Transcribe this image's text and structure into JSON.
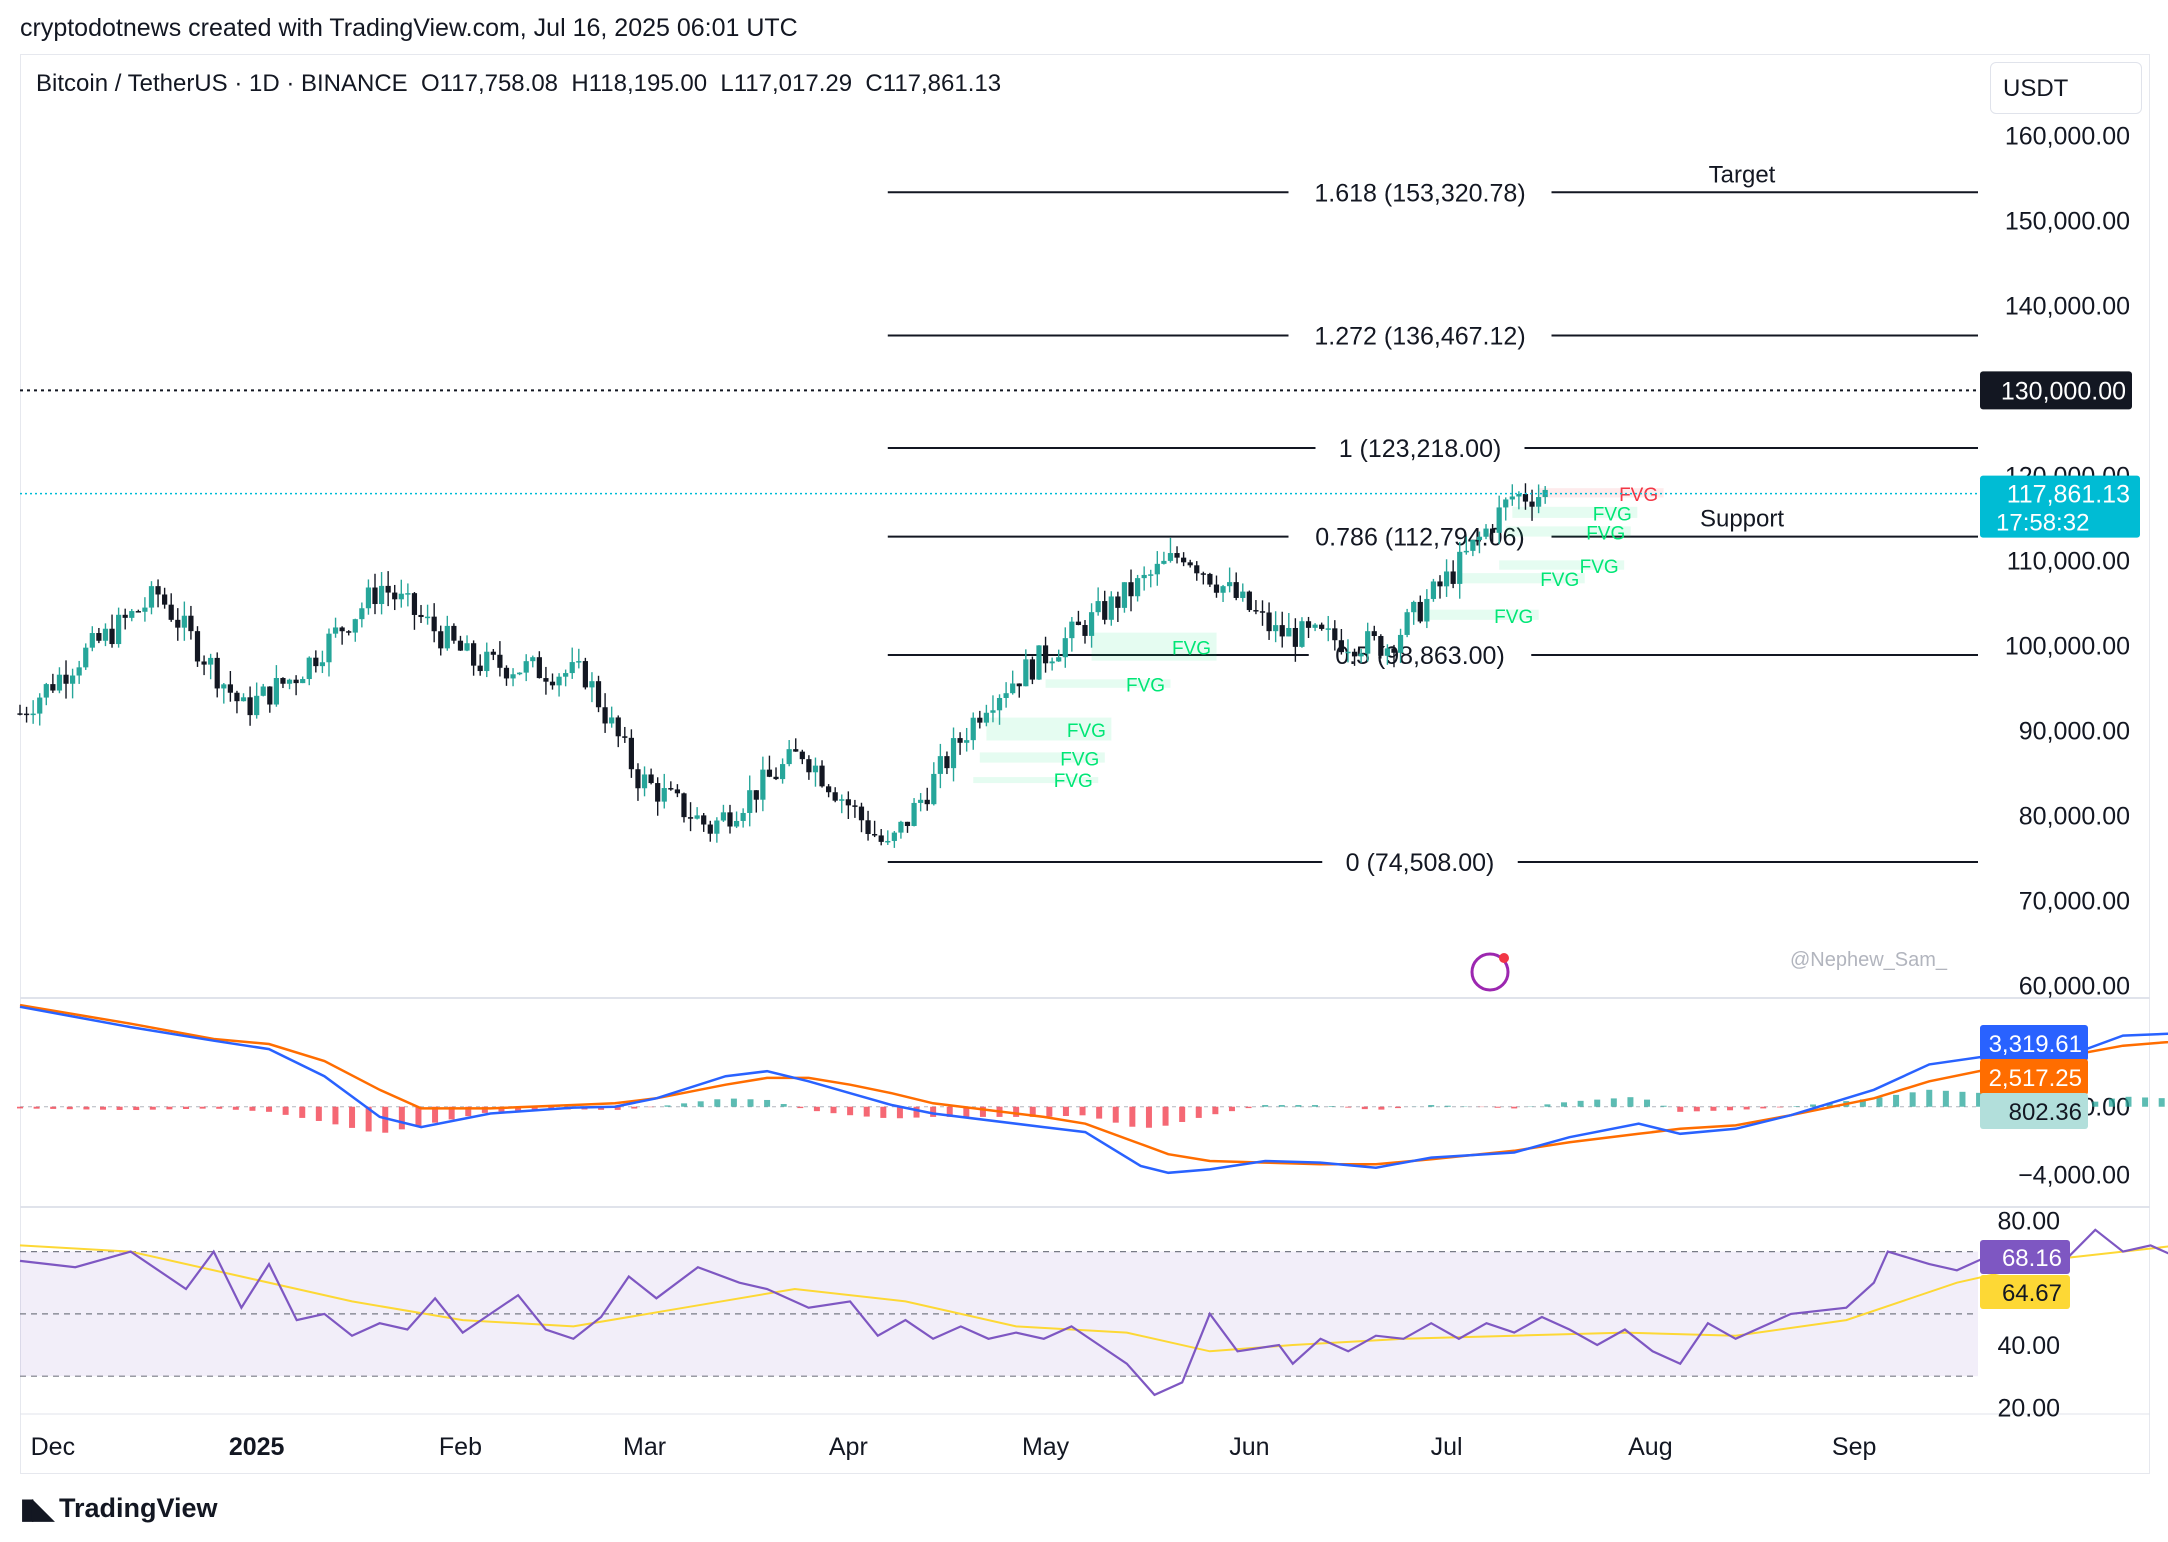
{
  "header": {
    "credit": "cryptodotnews created with TradingView.com, Jul 16, 2025 06:01 UTC",
    "symbol": "Bitcoin / TetherUS · 1D · BINANCE",
    "open": "O117,758.08",
    "high": "H118,195.00",
    "low": "L117,017.29",
    "close": "C117,861.13",
    "currency": "USDT"
  },
  "watermark": "@Nephew_Sam_",
  "brand": "TradingView",
  "colors": {
    "up": "#26a69a",
    "down": "#131722",
    "fvg_bull": "#00e676",
    "fvg_bear": "#f23645",
    "macd": "#2962ff",
    "signal": "#ff6d00",
    "rsi": "#7e57c2",
    "rsi_ma": "#fdd835",
    "last_price": "#00bcd4"
  },
  "chart_data": {
    "type": "candlestick",
    "price_axis": {
      "ticks": [
        "160,000.00",
        "150,000.00",
        "140,000.00",
        "130,000.00",
        "120,000.00",
        "110,000.00",
        "100,000.00",
        "90,000.00",
        "80,000.00",
        "70,000.00",
        "60,000.00"
      ],
      "tick_values": [
        160000,
        150000,
        140000,
        130000,
        120000,
        110000,
        100000,
        90000,
        80000,
        70000,
        60000
      ],
      "ylim": [
        58500,
        163000
      ]
    },
    "time_axis": {
      "labels": [
        "Dec",
        "2025",
        "Feb",
        "Mar",
        "Apr",
        "May",
        "Jun",
        "Jul",
        "Aug",
        "Sep"
      ],
      "label_dates": [
        "2024-12-01",
        "2025-01-01",
        "2025-02-01",
        "2025-03-01",
        "2025-04-01",
        "2025-05-01",
        "2025-06-01",
        "2025-07-01",
        "2025-08-01",
        "2025-09-01"
      ],
      "xlim": [
        "2024-11-26",
        "2025-10-16"
      ]
    },
    "candle_closes_approx": [
      {
        "date": "2024-11-26",
        "close": 92000
      },
      {
        "date": "2024-12-05",
        "close": 98500
      },
      {
        "date": "2024-12-17",
        "close": 106000
      },
      {
        "date": "2024-12-30",
        "close": 92500
      },
      {
        "date": "2025-01-07",
        "close": 96500
      },
      {
        "date": "2025-01-20",
        "close": 107000
      },
      {
        "date": "2025-02-03",
        "close": 98000
      },
      {
        "date": "2025-02-20",
        "close": 96500
      },
      {
        "date": "2025-02-28",
        "close": 84500
      },
      {
        "date": "2025-03-11",
        "close": 78500
      },
      {
        "date": "2025-03-25",
        "close": 87500
      },
      {
        "date": "2025-04-07",
        "close": 76000
      },
      {
        "date": "2025-04-22",
        "close": 93500
      },
      {
        "date": "2025-05-08",
        "close": 103000
      },
      {
        "date": "2025-05-22",
        "close": 111000
      },
      {
        "date": "2025-06-05",
        "close": 101500
      },
      {
        "date": "2025-06-22",
        "close": 100000
      },
      {
        "date": "2025-07-03",
        "close": 109500
      },
      {
        "date": "2025-07-11",
        "close": 117500
      },
      {
        "date": "2025-07-16",
        "close": 117861.13
      }
    ],
    "fib_levels": [
      {
        "label": "1.618 (153,320.78)",
        "value": 153320.78
      },
      {
        "label": "1.272 (136,467.12)",
        "value": 136467.12
      },
      {
        "label": "1 (123,218.00)",
        "value": 123218.0
      },
      {
        "label": "0.786 (112,794.06)",
        "value": 112794.06
      },
      {
        "label": "0.5 (98,863.00)",
        "value": 98863.0
      },
      {
        "label": "0 (74,508.00)",
        "value": 74508.0
      }
    ],
    "fib_range": [
      "2025-04-07",
      "2025-10-14"
    ],
    "annotations": [
      {
        "text": "Target",
        "value": 153320.78
      },
      {
        "text": "Support",
        "value": 112794.06
      }
    ],
    "reference_line": {
      "label": "130,000.00",
      "value": 130000
    },
    "last_price": {
      "label": "117,861.13",
      "value": 117861.13,
      "countdown": "17:58:32"
    },
    "fvg_zones": [
      {
        "label": "FVG",
        "side": "bear",
        "date": "2025-07-15",
        "top": 118500,
        "bottom": 117400
      },
      {
        "label": "FVG",
        "side": "bull",
        "date": "2025-07-11",
        "top": 116300,
        "bottom": 115000
      },
      {
        "label": "FVG",
        "side": "bull",
        "date": "2025-07-10",
        "top": 114000,
        "bottom": 112800
      },
      {
        "label": "FVG",
        "side": "bull",
        "date": "2025-07-09",
        "top": 110000,
        "bottom": 108900
      },
      {
        "label": "FVG",
        "side": "bull",
        "date": "2025-07-03",
        "top": 108500,
        "bottom": 107300
      },
      {
        "label": "FVG",
        "side": "bull",
        "date": "2025-06-26",
        "top": 104200,
        "bottom": 103000
      },
      {
        "label": "FVG",
        "side": "bull",
        "date": "2025-05-08",
        "top": 101500,
        "bottom": 98200
      },
      {
        "label": "FVG",
        "side": "bull",
        "date": "2025-05-01",
        "top": 96000,
        "bottom": 95000
      },
      {
        "label": "FVG",
        "side": "bull",
        "date": "2025-04-22",
        "top": 91500,
        "bottom": 88800
      },
      {
        "label": "FVG",
        "side": "bull",
        "date": "2025-04-21",
        "top": 87400,
        "bottom": 86200
      },
      {
        "label": "FVG",
        "side": "bull",
        "date": "2025-04-20",
        "top": 84500,
        "bottom": 84000
      }
    ],
    "macd": {
      "ticks": [
        "0.00",
        "−4,000.00"
      ],
      "tick_values": [
        0,
        -4000
      ],
      "ylim": [
        -5800,
        6300
      ],
      "macd_value": "3,319.61",
      "signal_value": "2,517.25",
      "hist_value": "802.36",
      "macd_line": [
        [
          0,
          5900
        ],
        [
          0.04,
          4700
        ],
        [
          0.07,
          3900
        ],
        [
          0.09,
          3400
        ],
        [
          0.11,
          1800
        ],
        [
          0.13,
          -600
        ],
        [
          0.145,
          -1200
        ],
        [
          0.17,
          -400
        ],
        [
          0.2,
          -50
        ],
        [
          0.215,
          0
        ],
        [
          0.23,
          500
        ],
        [
          0.255,
          1800
        ],
        [
          0.27,
          2100
        ],
        [
          0.285,
          1500
        ],
        [
          0.3,
          800
        ],
        [
          0.315,
          100
        ],
        [
          0.33,
          -400
        ],
        [
          0.37,
          -1200
        ],
        [
          0.385,
          -1500
        ],
        [
          0.405,
          -3500
        ],
        [
          0.415,
          -3900
        ],
        [
          0.43,
          -3700
        ],
        [
          0.45,
          -3200
        ],
        [
          0.47,
          -3300
        ],
        [
          0.49,
          -3600
        ],
        [
          0.51,
          -3000
        ],
        [
          0.54,
          -2700
        ],
        [
          0.56,
          -1800
        ],
        [
          0.585,
          -1000
        ],
        [
          0.6,
          -1600
        ],
        [
          0.62,
          -1300
        ],
        [
          0.64,
          -500
        ],
        [
          0.67,
          1000
        ],
        [
          0.69,
          2500
        ],
        [
          0.72,
          3200
        ],
        [
          0.74,
          3000
        ],
        [
          0.76,
          4200
        ],
        [
          0.79,
          4400
        ],
        [
          0.81,
          4100
        ],
        [
          0.825,
          3600
        ],
        [
          0.84,
          2300
        ],
        [
          0.86,
          1000
        ],
        [
          0.88,
          800
        ],
        [
          0.9,
          300
        ],
        [
          0.92,
          -700
        ],
        [
          0.94,
          100
        ],
        [
          0.96,
          800
        ],
        [
          0.98,
          1000
        ],
        [
          1.0,
          1200
        ],
        [
          1.02,
          2200
        ],
        [
          1.04,
          3300
        ],
        [
          1.05,
          3319.61
        ]
      ],
      "signal_line": [
        [
          0,
          6000
        ],
        [
          0.04,
          4900
        ],
        [
          0.07,
          4000
        ],
        [
          0.09,
          3700
        ],
        [
          0.11,
          2700
        ],
        [
          0.13,
          1000
        ],
        [
          0.145,
          -100
        ],
        [
          0.17,
          -100
        ],
        [
          0.2,
          100
        ],
        [
          0.215,
          200
        ],
        [
          0.23,
          500
        ],
        [
          0.255,
          1300
        ],
        [
          0.27,
          1700
        ],
        [
          0.285,
          1700
        ],
        [
          0.3,
          1300
        ],
        [
          0.315,
          800
        ],
        [
          0.33,
          200
        ],
        [
          0.37,
          -600
        ],
        [
          0.385,
          -1000
        ],
        [
          0.405,
          -2200
        ],
        [
          0.415,
          -2800
        ],
        [
          0.43,
          -3200
        ],
        [
          0.45,
          -3300
        ],
        [
          0.47,
          -3400
        ],
        [
          0.49,
          -3400
        ],
        [
          0.51,
          -3100
        ],
        [
          0.54,
          -2600
        ],
        [
          0.56,
          -2100
        ],
        [
          0.585,
          -1600
        ],
        [
          0.6,
          -1300
        ],
        [
          0.62,
          -1100
        ],
        [
          0.64,
          -500
        ],
        [
          0.67,
          500
        ],
        [
          0.69,
          1500
        ],
        [
          0.72,
          2500
        ],
        [
          0.74,
          3000
        ],
        [
          0.76,
          3600
        ],
        [
          0.79,
          4000
        ],
        [
          0.81,
          4000
        ],
        [
          0.825,
          3700
        ],
        [
          0.84,
          3000
        ],
        [
          0.86,
          1800
        ],
        [
          0.88,
          1200
        ],
        [
          0.9,
          800
        ],
        [
          0.92,
          0
        ],
        [
          0.94,
          0
        ],
        [
          0.96,
          300
        ],
        [
          0.98,
          600
        ],
        [
          1.0,
          900
        ],
        [
          1.02,
          1400
        ],
        [
          1.04,
          2200
        ],
        [
          1.05,
          2517.25
        ]
      ]
    },
    "rsi": {
      "ticks": [
        "80.00",
        "40.00",
        "20.00"
      ],
      "tick_values": [
        80,
        40,
        20
      ],
      "ylim": [
        18.5,
        84
      ],
      "bands": [
        70,
        50,
        30
      ],
      "rsi_value": "68.16",
      "ma_value": "64.67",
      "rsi_line": [
        [
          0,
          67
        ],
        [
          0.02,
          65
        ],
        [
          0.04,
          70
        ],
        [
          0.06,
          58
        ],
        [
          0.07,
          70
        ],
        [
          0.08,
          52
        ],
        [
          0.09,
          66
        ],
        [
          0.1,
          48
        ],
        [
          0.11,
          50
        ],
        [
          0.12,
          43
        ],
        [
          0.13,
          47
        ],
        [
          0.14,
          45
        ],
        [
          0.15,
          55
        ],
        [
          0.16,
          44
        ],
        [
          0.17,
          50
        ],
        [
          0.18,
          56
        ],
        [
          0.19,
          45
        ],
        [
          0.2,
          42
        ],
        [
          0.21,
          49
        ],
        [
          0.22,
          62
        ],
        [
          0.23,
          55
        ],
        [
          0.245,
          65
        ],
        [
          0.26,
          60
        ],
        [
          0.27,
          58
        ],
        [
          0.285,
          52
        ],
        [
          0.3,
          54
        ],
        [
          0.31,
          43
        ],
        [
          0.32,
          48
        ],
        [
          0.33,
          42
        ],
        [
          0.34,
          46
        ],
        [
          0.35,
          42
        ],
        [
          0.36,
          44
        ],
        [
          0.37,
          42
        ],
        [
          0.38,
          46
        ],
        [
          0.39,
          40
        ],
        [
          0.4,
          34
        ],
        [
          0.41,
          24
        ],
        [
          0.42,
          28
        ],
        [
          0.43,
          50
        ],
        [
          0.44,
          38
        ],
        [
          0.455,
          40
        ],
        [
          0.46,
          34
        ],
        [
          0.47,
          42
        ],
        [
          0.48,
          38
        ],
        [
          0.49,
          43
        ],
        [
          0.5,
          42
        ],
        [
          0.51,
          47
        ],
        [
          0.52,
          42
        ],
        [
          0.53,
          47
        ],
        [
          0.54,
          44
        ],
        [
          0.55,
          49
        ],
        [
          0.56,
          45
        ],
        [
          0.57,
          40
        ],
        [
          0.58,
          45
        ],
        [
          0.59,
          38
        ],
        [
          0.6,
          34
        ],
        [
          0.61,
          47
        ],
        [
          0.62,
          42
        ],
        [
          0.63,
          46
        ],
        [
          0.64,
          50
        ],
        [
          0.66,
          52
        ],
        [
          0.67,
          60
        ],
        [
          0.675,
          70
        ],
        [
          0.69,
          66
        ],
        [
          0.7,
          64
        ],
        [
          0.71,
          68
        ],
        [
          0.72,
          64
        ],
        [
          0.73,
          70
        ],
        [
          0.74,
          68
        ],
        [
          0.75,
          77
        ],
        [
          0.76,
          70
        ],
        [
          0.77,
          72
        ],
        [
          0.78,
          68
        ],
        [
          0.79,
          72
        ],
        [
          0.8,
          77
        ],
        [
          0.81,
          62
        ],
        [
          0.82,
          66
        ],
        [
          0.83,
          66
        ],
        [
          0.84,
          60
        ],
        [
          0.85,
          52
        ],
        [
          0.86,
          58
        ],
        [
          0.87,
          44
        ],
        [
          0.875,
          60
        ],
        [
          0.89,
          57
        ],
        [
          0.9,
          50
        ],
        [
          0.91,
          56
        ],
        [
          0.92,
          52
        ],
        [
          0.93,
          54
        ],
        [
          0.94,
          48
        ],
        [
          0.95,
          44
        ],
        [
          0.955,
          40
        ],
        [
          0.97,
          57
        ],
        [
          0.98,
          52
        ],
        [
          0.99,
          60
        ],
        [
          1.0,
          58
        ],
        [
          1.01,
          62
        ],
        [
          1.02,
          68
        ],
        [
          1.03,
          76
        ],
        [
          1.04,
          74
        ],
        [
          1.05,
          68.16
        ]
      ],
      "ma_line": [
        [
          0,
          72
        ],
        [
          0.04,
          70
        ],
        [
          0.08,
          62
        ],
        [
          0.12,
          54
        ],
        [
          0.16,
          48
        ],
        [
          0.2,
          46
        ],
        [
          0.24,
          52
        ],
        [
          0.28,
          58
        ],
        [
          0.32,
          54
        ],
        [
          0.36,
          46
        ],
        [
          0.4,
          44
        ],
        [
          0.43,
          38
        ],
        [
          0.46,
          40
        ],
        [
          0.5,
          42
        ],
        [
          0.54,
          43
        ],
        [
          0.58,
          44
        ],
        [
          0.62,
          43
        ],
        [
          0.66,
          48
        ],
        [
          0.7,
          60
        ],
        [
          0.74,
          68
        ],
        [
          0.78,
          72
        ],
        [
          0.82,
          70
        ],
        [
          0.86,
          60
        ],
        [
          0.9,
          56
        ],
        [
          0.94,
          54
        ],
        [
          0.98,
          52
        ],
        [
          1.02,
          56
        ],
        [
          1.05,
          64.67
        ]
      ]
    }
  }
}
